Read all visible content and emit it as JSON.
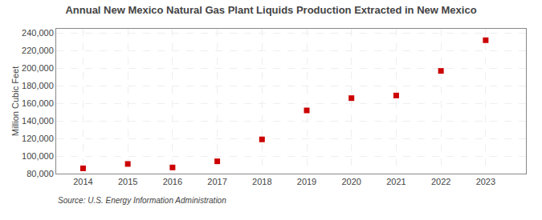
{
  "chart_data": {
    "type": "scatter",
    "title": "Annual New Mexico Natural Gas Plant Liquids Production Extracted in New Mexico",
    "ylabel": "Million Cubic Feet",
    "source": "Source: U.S. Energy Information Administration",
    "x": [
      2014,
      2015,
      2016,
      2017,
      2018,
      2019,
      2020,
      2021,
      2022,
      2023
    ],
    "values": [
      86000,
      91000,
      87000,
      94000,
      119000,
      152000,
      166000,
      169000,
      197000,
      232000
    ],
    "color": "#cc0000",
    "marker": "square",
    "xlim": [
      2013.4,
      2023.9
    ],
    "xticks": [
      2014,
      2015,
      2016,
      2017,
      2018,
      2019,
      2020,
      2021,
      2022,
      2023
    ],
    "ylim": [
      80000,
      245000
    ],
    "yticks": [
      {
        "value": 80000,
        "label": "80,000"
      },
      {
        "value": 100000,
        "label": "100,000"
      },
      {
        "value": 120000,
        "label": "120,000"
      },
      {
        "value": 140000,
        "label": "140,000"
      },
      {
        "value": 160000,
        "label": "160,000"
      },
      {
        "value": 180000,
        "label": "180,000"
      },
      {
        "value": 200000,
        "label": "200,000"
      },
      {
        "value": 220000,
        "label": "220,000"
      },
      {
        "value": 240000,
        "label": "240,000"
      }
    ],
    "grid": true
  }
}
